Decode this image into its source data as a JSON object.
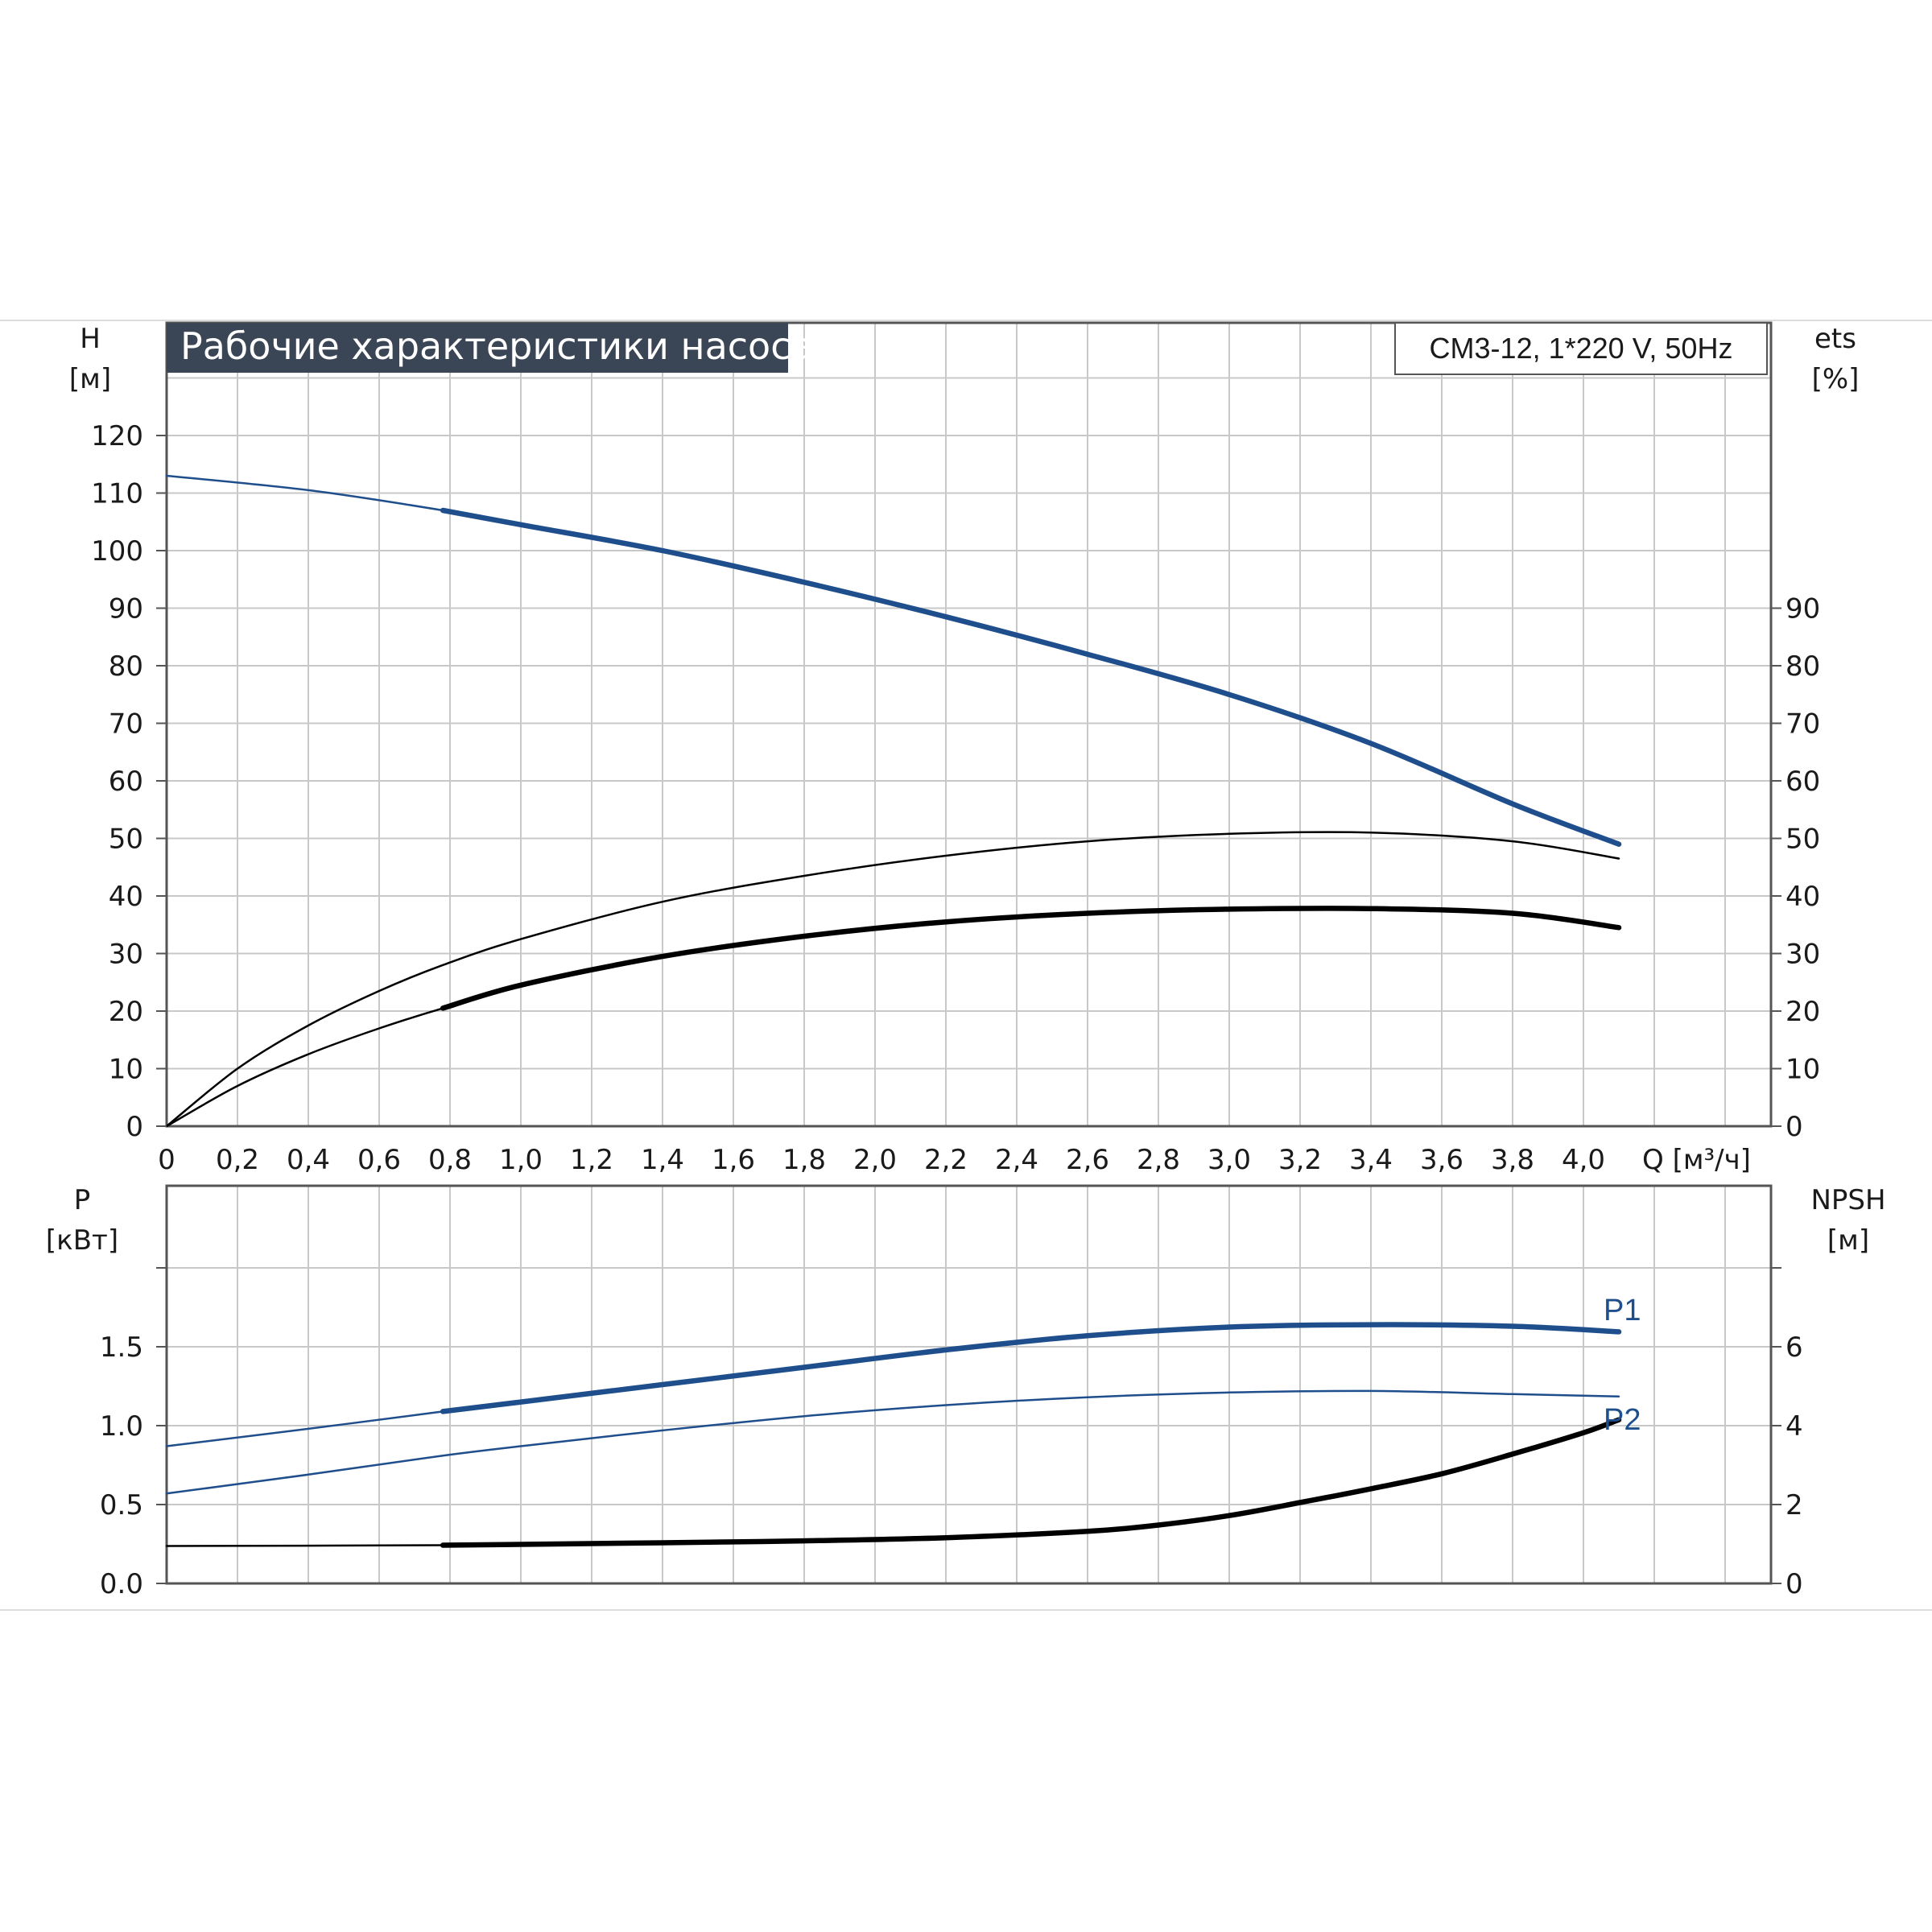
{
  "title": "Рабочие характеристики насоса",
  "model": "CM3-12, 1*220 V, 50Hz",
  "colors": {
    "blue": "#1f4e8c",
    "black": "#000000",
    "title_bg": "#3a4555",
    "grid": "#c8c8c8"
  },
  "top": {
    "left_axis_label": [
      "H",
      "[м]"
    ],
    "right_axis_label": [
      "ets",
      "[%]"
    ],
    "left_ticks": [
      "0",
      "10",
      "20",
      "30",
      "40",
      "50",
      "60",
      "70",
      "80",
      "90",
      "100",
      "110",
      "120"
    ],
    "right_ticks": [
      "0",
      "10",
      "20",
      "30",
      "40",
      "50",
      "60",
      "70",
      "80",
      "90"
    ],
    "x_ticks": [
      "0",
      "0,2",
      "0,4",
      "0,6",
      "0,8",
      "1,0",
      "1,2",
      "1,4",
      "1,6",
      "1,8",
      "2,0",
      "2,2",
      "2,4",
      "2,6",
      "2,8",
      "3,0",
      "3,2",
      "3,4",
      "3,6",
      "3,8",
      "4,0"
    ],
    "x_label": "Q [м³/ч]"
  },
  "bottom": {
    "left_axis_label": [
      "P",
      "[кВт]"
    ],
    "right_axis_label": [
      "NPSH",
      "[м]"
    ],
    "left_ticks": [
      "0.0",
      "0.5",
      "1.0",
      "1.5"
    ],
    "right_ticks": [
      "0",
      "2",
      "4",
      "6"
    ]
  },
  "chart_data": [
    {
      "type": "line",
      "title": "Рабочие характеристики насоса",
      "xlabel": "Q [м³/ч]",
      "ylabel": "H [м]",
      "y2label": "ets [%]",
      "xlim": [
        0,
        4.5
      ],
      "ylim": [
        0,
        130
      ],
      "y2lim": [
        0,
        130
      ],
      "grid": true,
      "series": [
        {
          "axis": "left",
          "color": "blue",
          "style": "head",
          "thick_from": 0.78,
          "x": [
            0,
            0.4,
            0.78,
            1.0,
            1.4,
            1.8,
            2.2,
            2.6,
            3.0,
            3.4,
            3.8,
            4.1
          ],
          "y": [
            113,
            110.5,
            107,
            104.5,
            100,
            94.5,
            88.5,
            82,
            75,
            66.5,
            56,
            49
          ]
        },
        {
          "axis": "right",
          "color": "black",
          "style": "thin",
          "thick_from": null,
          "x": [
            0,
            0.2,
            0.4,
            0.6,
            0.78,
            1.0,
            1.4,
            1.8,
            2.2,
            2.6,
            3.0,
            3.4,
            3.8,
            4.1
          ],
          "y": [
            0,
            10,
            17.5,
            23.5,
            28,
            32.5,
            39,
            43.5,
            47,
            49.5,
            50.8,
            51,
            49.5,
            46.5
          ]
        },
        {
          "axis": "right",
          "color": "black",
          "style": "thick",
          "thick_from": 0.78,
          "x": [
            0,
            0.2,
            0.4,
            0.6,
            0.78,
            1.0,
            1.4,
            1.8,
            2.2,
            2.6,
            3.0,
            3.4,
            3.8,
            4.1
          ],
          "y": [
            0,
            7,
            12.5,
            17,
            20.5,
            24.5,
            29.5,
            33,
            35.5,
            37,
            37.7,
            37.8,
            37,
            34.5
          ]
        }
      ]
    },
    {
      "type": "line",
      "xlabel": "Q [м³/ч]",
      "ylabel": "P [кВт]",
      "y2label": "NPSH [м]",
      "xlim": [
        0,
        4.5
      ],
      "ylim": [
        0,
        2.0
      ],
      "y2lim": [
        0,
        8
      ],
      "grid": true,
      "series": [
        {
          "name": "P1",
          "axis": "left",
          "color": "blue",
          "style": "thick",
          "thick_from": 0.78,
          "x": [
            0,
            0.4,
            0.78,
            1.0,
            1.4,
            1.8,
            2.2,
            2.6,
            3.0,
            3.4,
            3.8,
            4.1
          ],
          "y": [
            0.87,
            0.98,
            1.09,
            1.15,
            1.26,
            1.37,
            1.48,
            1.57,
            1.625,
            1.64,
            1.63,
            1.595
          ]
        },
        {
          "name": "P2",
          "axis": "left",
          "color": "blue",
          "style": "thin",
          "thick_from": null,
          "x": [
            0,
            0.4,
            0.78,
            1.0,
            1.4,
            1.8,
            2.2,
            2.6,
            3.0,
            3.4,
            3.8,
            4.1
          ],
          "y": [
            0.57,
            0.69,
            0.81,
            0.87,
            0.97,
            1.06,
            1.13,
            1.18,
            1.21,
            1.22,
            1.2,
            1.185
          ]
        },
        {
          "axis": "right",
          "color": "black",
          "style": "thick",
          "thick_from": 0.78,
          "x": [
            0,
            0.78,
            1.4,
            1.8,
            2.2,
            2.6,
            2.8,
            3.0,
            3.2,
            3.4,
            3.6,
            3.8,
            4.0,
            4.1
          ],
          "y": [
            0.95,
            0.97,
            1.03,
            1.08,
            1.16,
            1.32,
            1.48,
            1.72,
            2.05,
            2.4,
            2.78,
            3.28,
            3.82,
            4.15
          ]
        }
      ]
    }
  ]
}
